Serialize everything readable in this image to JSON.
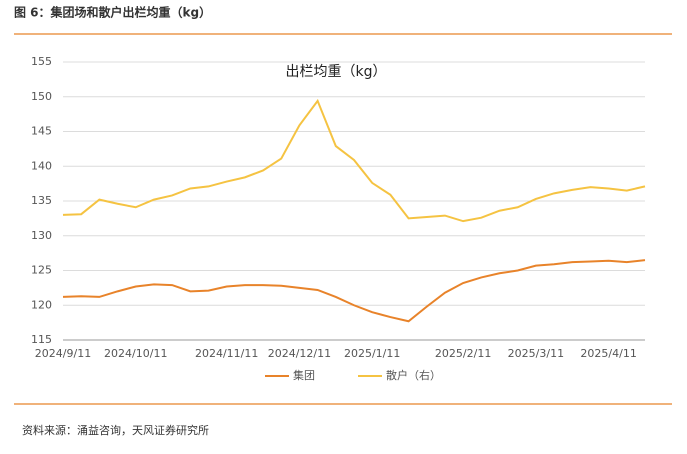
{
  "header": {
    "caption": "图 6：集团场和散户出栏均重（kg）"
  },
  "chart_data": {
    "type": "line",
    "title": "出栏均重（kg）",
    "categories": [
      "2024/9/11",
      null,
      null,
      null,
      "2024/10/11",
      null,
      null,
      null,
      null,
      "2024/11/11",
      null,
      null,
      null,
      "2024/12/11",
      null,
      null,
      null,
      "2025/1/11",
      null,
      null,
      null,
      null,
      "2025/2/11",
      null,
      null,
      null,
      "2025/3/11",
      null,
      null,
      null,
      "2025/4/11",
      null,
      null
    ],
    "series": [
      {
        "name": "集团",
        "color": "#e8832a",
        "values": [
          121.2,
          121.3,
          121.2,
          122,
          122.7,
          123,
          122.9,
          122,
          122.1,
          122.7,
          122.9,
          122.9,
          122.8,
          122.5,
          122.2,
          121.2,
          120,
          119,
          118.3,
          117.7,
          119.8,
          121.8,
          123.2,
          124,
          124.6,
          125,
          125.7,
          125.9,
          126.2,
          126.3,
          126.4,
          126.2,
          126.5
        ]
      },
      {
        "name": "散户（右）",
        "color": "#f5c342",
        "values": [
          133,
          133.1,
          135.2,
          134.6,
          134.1,
          135.2,
          135.8,
          136.8,
          137.1,
          137.8,
          138.4,
          139.4,
          141.1,
          145.9,
          149.4,
          142.9,
          140.9,
          137.6,
          135.9,
          132.5,
          132.7,
          132.9,
          132.1,
          132.6,
          133.6,
          134.1,
          135.3,
          136.1,
          136.6,
          137,
          136.8,
          136.5,
          137.1
        ]
      }
    ],
    "ylim": [
      115,
      155
    ],
    "yticks": [
      115,
      120,
      125,
      130,
      135,
      140,
      145,
      150,
      155
    ],
    "grid": true
  },
  "footer": {
    "source": "资料来源：涌益咨询，天风证券研究所"
  }
}
